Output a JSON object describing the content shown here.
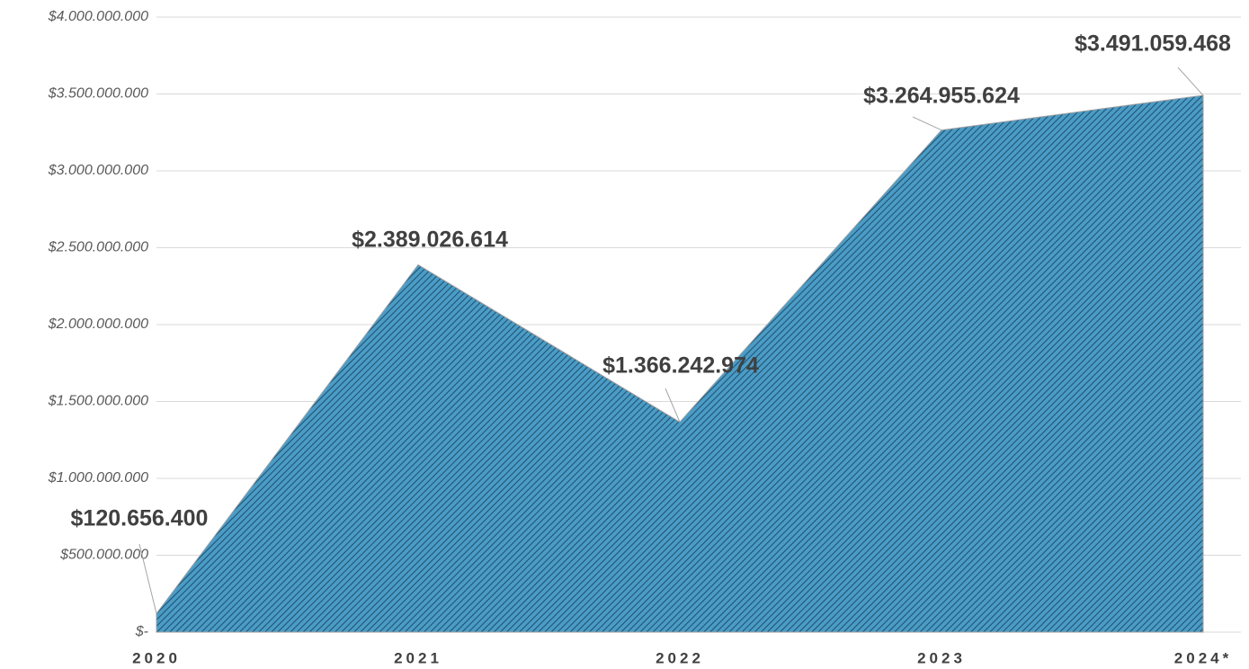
{
  "chart_data": {
    "type": "area",
    "categories": [
      "2020",
      "2021",
      "2022",
      "2023",
      "2024*"
    ],
    "values": [
      120656400,
      2389026614,
      1366242974,
      3264955624,
      3491059468
    ],
    "value_labels": [
      "$120.656.400",
      "$2.389.026.614",
      "$1.366.242.974",
      "$3.264.955.624",
      "$3.491.059.468"
    ],
    "color": "#4a9cc6",
    "ylim": [
      0,
      4000000000
    ],
    "yticks": [
      {
        "value": 0,
        "label": "$-"
      },
      {
        "value": 500000000,
        "label": "$500.000.000"
      },
      {
        "value": 1000000000,
        "label": "$1.000.000.000"
      },
      {
        "value": 1500000000,
        "label": "$1.500.000.000"
      },
      {
        "value": 2000000000,
        "label": "$2.000.000.000"
      },
      {
        "value": 2500000000,
        "label": "$2.500.000.000"
      },
      {
        "value": 3000000000,
        "label": "$3.000.000.000"
      },
      {
        "value": 3500000000,
        "label": "$3.500.000.000"
      },
      {
        "value": 4000000000,
        "label": "$4.000.000.000"
      }
    ],
    "grid": true
  }
}
